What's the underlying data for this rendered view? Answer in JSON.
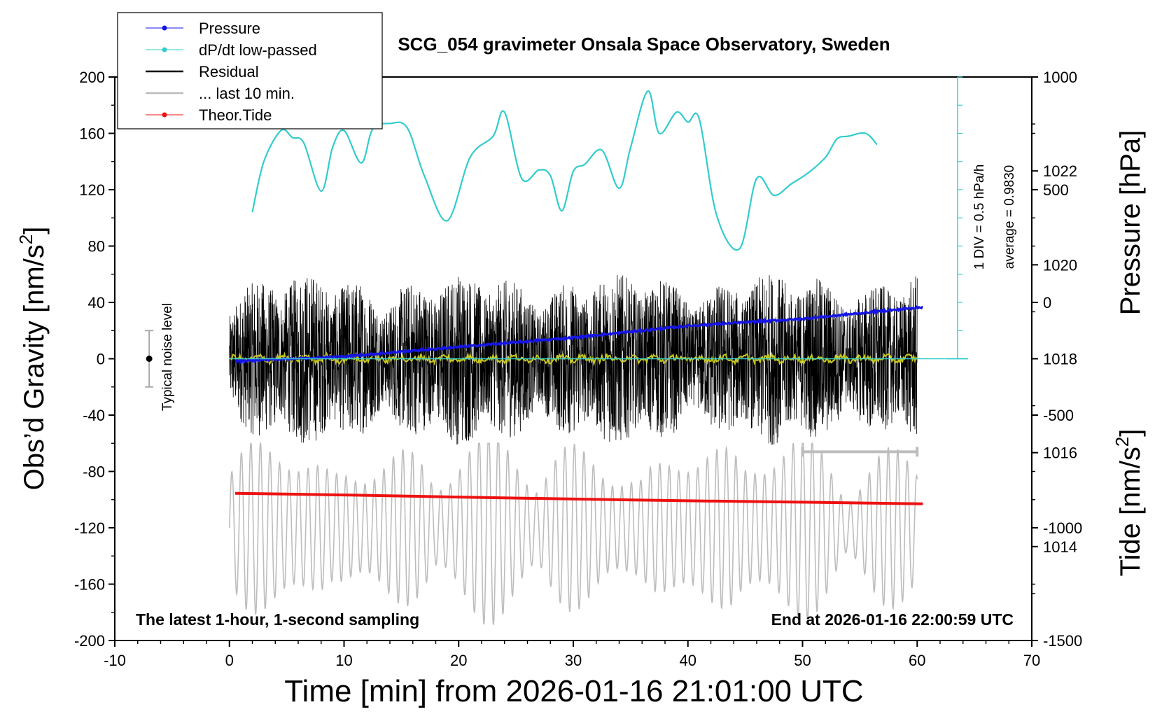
{
  "chart_data": {
    "type": "line",
    "title": "SCG_054 gravimeter Onsala Space Observatory, Sweden",
    "xlabel": "Time [min] from 2026-01-16 21:01:00 UTC",
    "ylabel_main": "Obs’d Gravity [nm/s",
    "ylabel_sup": "2",
    "ylabel_close": "]",
    "y2label": "Pressure [hPa]",
    "y3label_main": "Tide [nm/s",
    "y3label_sup": "2",
    "y3label_close": "]",
    "xlim": [
      -10,
      70
    ],
    "ylim": [
      -200,
      200
    ],
    "x_ticks": [
      "-10",
      "0",
      "10",
      "20",
      "30",
      "40",
      "50",
      "60",
      "70"
    ],
    "y_ticks": [
      "200",
      "160",
      "120",
      "80",
      "40",
      "0",
      "-40",
      "-80",
      "-120",
      "-160",
      "-200"
    ],
    "pressure_ticks": [
      "1022",
      "1020",
      "1018",
      "1016",
      "1014"
    ],
    "pressure_range": [
      1012.0,
      1024.0
    ],
    "tide_ticks": [
      "1000",
      "500",
      "0",
      "-500",
      "-1000",
      "-1500"
    ],
    "tide_range": [
      -1500,
      1000
    ],
    "bottom_left_note": "The latest 1-hour, 1-second sampling",
    "bottom_right_note": "End at 2026-01-16 22:00:59 UTC",
    "noise_label": "Typical noise level",
    "noise_range": [
      -20,
      20
    ],
    "dpdt_scale_label": "1 DIV = 0.5 hPa/h",
    "average_label": "average = 0.9830",
    "legend": [
      {
        "label": "Pressure",
        "color": "#1515e6",
        "marker": true
      },
      {
        "label": "dP/dt low-passed",
        "color": "#33cccc",
        "marker": true
      },
      {
        "label": "Residual",
        "color": "#000000",
        "marker": false
      },
      {
        "label": "... last 10 min.",
        "color": "#bbbbbb",
        "marker": false
      },
      {
        "label": "Theor.Tide",
        "color": "#ee1111",
        "marker": true
      }
    ],
    "series": [
      {
        "name": "Pressure",
        "unit": "hPa",
        "x": [
          0.5,
          10,
          20,
          30,
          40,
          50,
          60.5
        ],
        "values": [
          1017.95,
          1018.05,
          1018.25,
          1018.45,
          1018.7,
          1018.85,
          1019.1
        ]
      },
      {
        "name": "dP/dt low-passed",
        "unit": "nm/s2 plot scale",
        "x": [
          2,
          3,
          4.5,
          5.5,
          6.5,
          8,
          9,
          10,
          11.5,
          12.5,
          14,
          15.5,
          17,
          19,
          21,
          23,
          24,
          25.5,
          27,
          28,
          29,
          30,
          31,
          32.5,
          34,
          35,
          36.5,
          37.5,
          39,
          40,
          41,
          42.5,
          44.5,
          46,
          47.5,
          49,
          50.5,
          52,
          53,
          54,
          55.5,
          56.5
        ],
        "values": [
          104,
          140,
          162,
          157,
          153,
          119,
          150,
          162,
          139,
          163,
          167,
          164,
          130,
          98,
          143,
          158,
          175,
          128,
          134,
          130,
          105,
          133,
          138,
          148,
          121,
          150,
          190,
          160,
          175,
          168,
          170,
          102,
          78,
          128,
          116,
          124,
          132,
          143,
          156,
          158,
          160,
          152
        ]
      },
      {
        "name": "Residual",
        "x_range": [
          0,
          60
        ],
        "center": 0,
        "envelope": [
          -75,
          85
        ]
      },
      {
        "name": "... last 10 min.",
        "x_range": [
          0,
          60
        ],
        "center": -120,
        "envelope": [
          -195,
          -60
        ]
      },
      {
        "name": "Theor.Tide",
        "unit": "nm/s2 plot scale",
        "x": [
          0.5,
          10,
          20,
          30,
          40,
          50,
          60.5
        ],
        "values": [
          -95.5,
          -96.7,
          -98.2,
          -99.6,
          -100.8,
          -101.8,
          -103
        ]
      }
    ],
    "span_bar": {
      "x": [
        50,
        60
      ],
      "y": -66
    }
  }
}
